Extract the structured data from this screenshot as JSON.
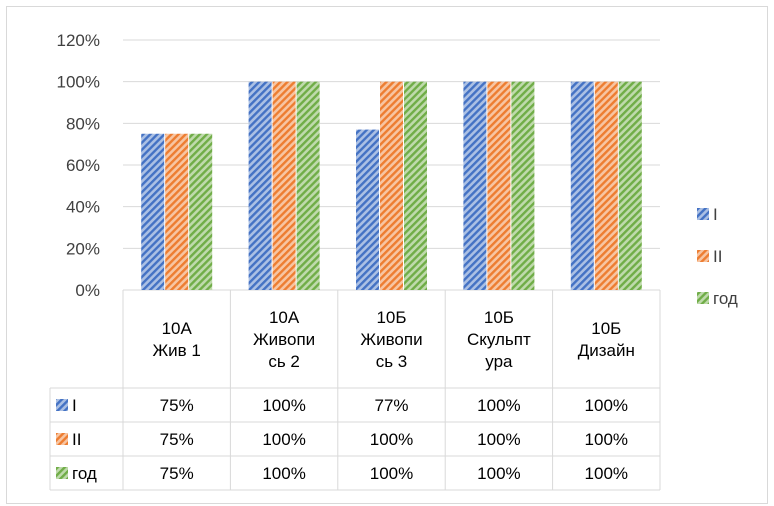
{
  "chart_data": {
    "type": "bar",
    "categories": [
      [
        "10А",
        "Жив 1"
      ],
      [
        "10А",
        "Живопи",
        "сь 2"
      ],
      [
        "10Б",
        "Живопи",
        "сь 3"
      ],
      [
        "10Б",
        "Скульпт",
        "ура"
      ],
      [
        "10Б",
        "Дизайн"
      ]
    ],
    "series": [
      {
        "name": "I",
        "values": [
          75,
          100,
          77,
          100,
          100
        ],
        "color": "#4472C4",
        "display": [
          "75%",
          "100%",
          "77%",
          "100%",
          "100%"
        ]
      },
      {
        "name": "II",
        "values": [
          75,
          100,
          100,
          100,
          100
        ],
        "color": "#ED7D31",
        "display": [
          "75%",
          "100%",
          "100%",
          "100%",
          "100%"
        ]
      },
      {
        "name": "год",
        "values": [
          75,
          100,
          100,
          100,
          100
        ],
        "color": "#70AD47",
        "display": [
          "75%",
          "100%",
          "100%",
          "100%",
          "100%"
        ]
      }
    ],
    "ylim": [
      0,
      120
    ],
    "yticks": [
      "0%",
      "20%",
      "40%",
      "60%",
      "80%",
      "100%",
      "120%"
    ],
    "grid": true,
    "legend_position": "right",
    "data_table": true,
    "bar_pattern": "diagonal-hatch"
  }
}
